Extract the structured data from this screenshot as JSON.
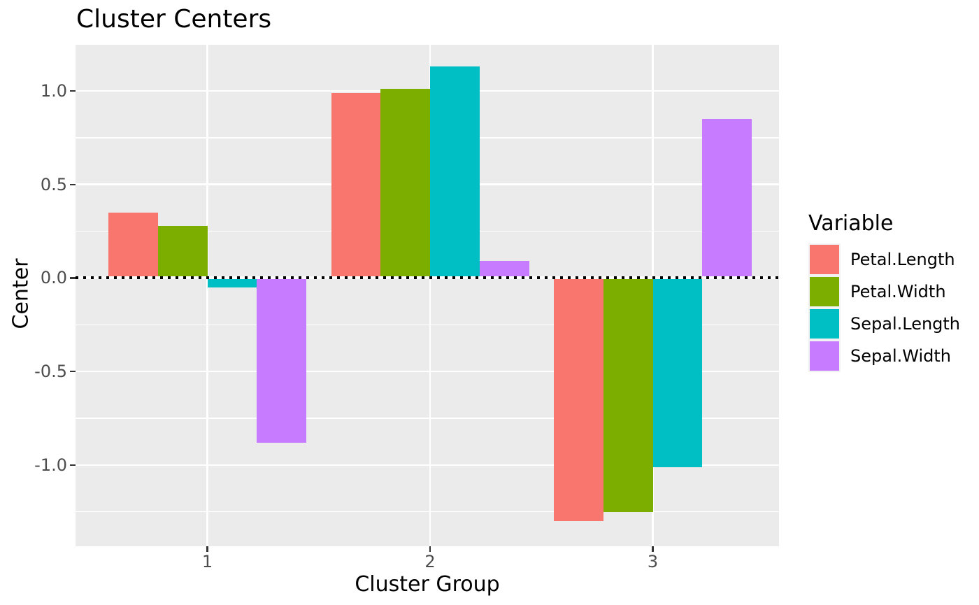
{
  "chart_data": {
    "type": "bar",
    "title": "Cluster Centers",
    "xlabel": "Cluster Group",
    "ylabel": "Center",
    "categories": [
      "1",
      "2",
      "3"
    ],
    "series": [
      {
        "name": "Petal.Length",
        "color": "#F8766D",
        "values": [
          0.35,
          0.99,
          -1.3
        ]
      },
      {
        "name": "Petal.Width",
        "color": "#7CAE00",
        "values": [
          0.28,
          1.01,
          -1.25
        ]
      },
      {
        "name": "Sepal.Length",
        "color": "#00BFC4",
        "values": [
          -0.05,
          1.13,
          -1.01
        ]
      },
      {
        "name": "Sepal.Width",
        "color": "#C77CFF",
        "values": [
          -0.88,
          0.09,
          0.85
        ]
      }
    ],
    "legend": {
      "title": "Variable",
      "position": "right",
      "entries": [
        "Petal.Length",
        "Petal.Width",
        "Sepal.Length",
        "Sepal.Width"
      ]
    },
    "y_axis": {
      "tick_values": [
        1.0,
        0.5,
        0.0,
        -0.5,
        -1.0
      ],
      "tick_labels": [
        "1.0",
        "0.5",
        "0.0",
        "-0.5",
        "-1.0"
      ],
      "minor_tick_values": [
        1.25,
        0.75,
        0.25,
        -0.25,
        -0.75,
        -1.25
      ],
      "range": [
        -1.434,
        1.254
      ]
    },
    "zero_line": {
      "y": 0,
      "style": "dotted",
      "color": "#000000"
    },
    "grid": true,
    "style": {
      "panel_bg": "#EBEBEB",
      "grid_color": "#FFFFFF",
      "tick_label_color": "#4D4D4D",
      "tick_mark_color": "#333333",
      "text_color": "#000000",
      "figure_bg": "#FFFFFF"
    }
  }
}
